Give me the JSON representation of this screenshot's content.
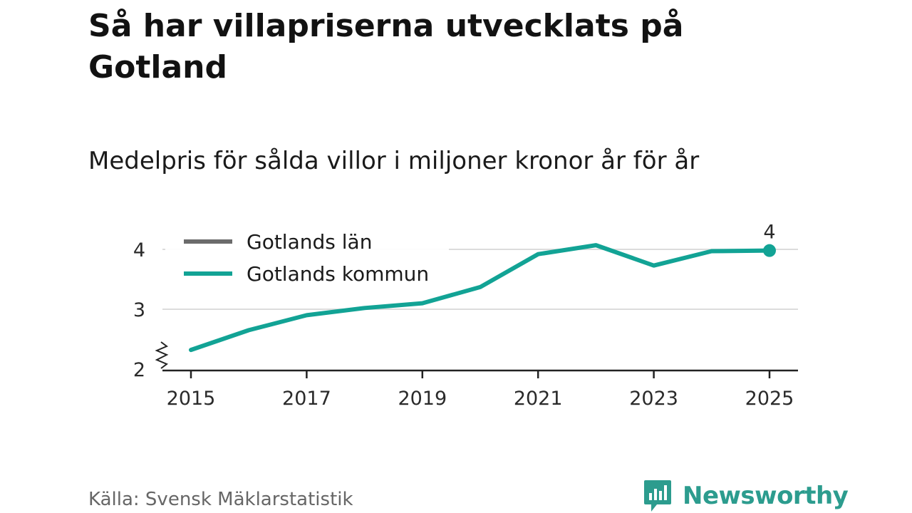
{
  "title": "Så har villapriserna utvecklats på Gotland",
  "subtitle": "Medelpris för sålda villor i miljoner kronor år för år",
  "source": "Källa: Svensk Mäklarstatistik",
  "brand": "Newsworthy",
  "colors": {
    "kommun": "#12a395",
    "lan": "#6b6b6b",
    "grid": "#dcdcdc",
    "axis": "#222222",
    "brand": "#2c9c8e"
  },
  "chart_data": {
    "type": "line",
    "x": [
      2015,
      2016,
      2017,
      2018,
      2019,
      2020,
      2021,
      2022,
      2023,
      2024,
      2025
    ],
    "series": [
      {
        "name": "Gotlands län",
        "color": "#6b6b6b",
        "values": [
          2.32,
          2.65,
          2.9,
          3.02,
          3.1,
          3.37,
          3.92,
          4.07,
          3.73,
          3.97,
          3.98
        ]
      },
      {
        "name": "Gotlands kommun",
        "color": "#12a395",
        "values": [
          2.32,
          2.65,
          2.9,
          3.02,
          3.1,
          3.37,
          3.92,
          4.07,
          3.73,
          3.97,
          3.98
        ]
      }
    ],
    "xticks": [
      "2015",
      "2017",
      "2019",
      "2021",
      "2023",
      "2025"
    ],
    "yticks": [
      "2",
      "3",
      "4"
    ],
    "ylim": [
      2,
      4.5
    ],
    "xlim": [
      2015,
      2025
    ],
    "end_label": "4",
    "legend_position": "top-left",
    "xlabel": "",
    "ylabel": ""
  }
}
